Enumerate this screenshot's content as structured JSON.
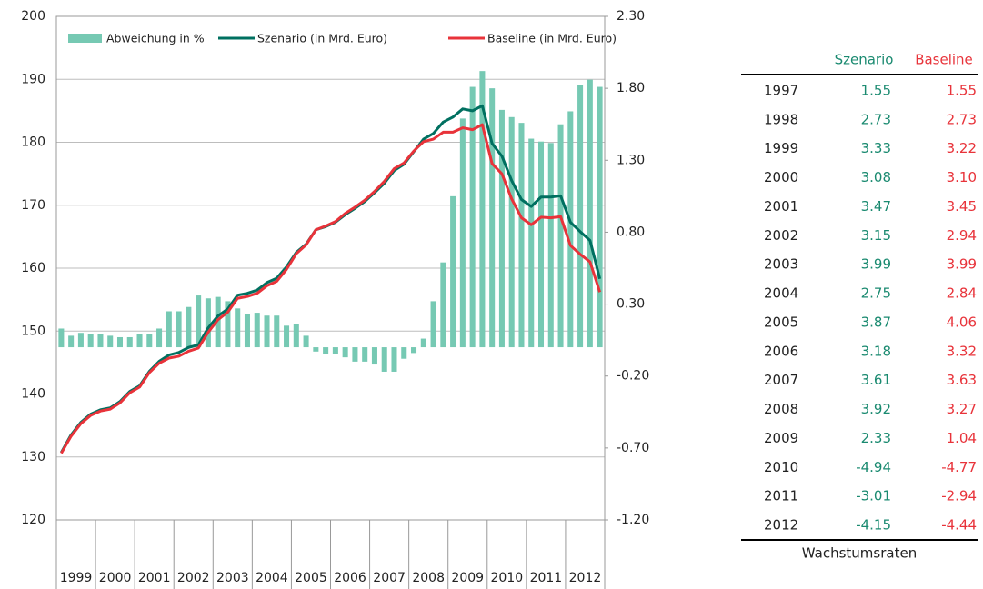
{
  "chart_data": {
    "type": "combo",
    "categories": [
      "1999",
      null,
      null,
      null,
      "2000",
      null,
      null,
      null,
      "2001",
      null,
      null,
      null,
      "2002",
      null,
      null,
      null,
      "2003",
      null,
      null,
      null,
      "2004",
      null,
      null,
      null,
      "2005",
      null,
      null,
      null,
      "2006",
      null,
      null,
      null,
      "2007",
      null,
      null,
      null,
      "2008",
      null,
      null,
      null,
      "2009",
      null,
      null,
      null,
      "2010",
      null,
      null,
      null,
      "2011",
      null,
      null,
      null,
      "2012",
      null,
      null,
      null
    ],
    "ylim": [
      120,
      200
    ],
    "yticks": [
      120,
      130,
      140,
      150,
      160,
      170,
      180,
      190,
      200
    ],
    "y2lim": [
      -1.2,
      2.3
    ],
    "y2ticks": [
      {
        "value": -1.2,
        "label": "-1.20"
      },
      {
        "value": -0.7,
        "label": "-0.70"
      },
      {
        "value": -0.2,
        "label": "-0.20"
      },
      {
        "value": 0.3,
        "label": "0.30"
      },
      {
        "value": 0.8,
        "label": "0.80"
      },
      {
        "value": 1.3,
        "label": "1.30"
      },
      {
        "value": 1.8,
        "label": "1.80"
      },
      {
        "value": 2.3,
        "label": "2.30"
      }
    ],
    "grid": true,
    "legend": "top",
    "series": [
      {
        "name": "Abweichung in %",
        "type": "bar",
        "axis": "y2",
        "color": "#76c9b3",
        "values": [
          0.13,
          0.08,
          0.1,
          0.09,
          0.09,
          0.08,
          0.07,
          0.07,
          0.09,
          0.09,
          0.13,
          0.25,
          0.25,
          0.28,
          0.36,
          0.34,
          0.35,
          0.32,
          0.27,
          0.23,
          0.24,
          0.22,
          0.22,
          0.15,
          0.16,
          0.08,
          -0.03,
          -0.05,
          -0.05,
          -0.07,
          -0.1,
          -0.1,
          -0.12,
          -0.17,
          -0.17,
          -0.08,
          -0.04,
          0.06,
          0.32,
          0.59,
          1.05,
          1.59,
          1.81,
          1.92,
          1.8,
          1.65,
          1.6,
          1.56,
          1.45,
          1.43,
          1.42,
          1.55,
          1.64,
          1.82,
          1.86,
          1.81
        ]
      },
      {
        "name": "Szenario (in Mrd. Euro)",
        "type": "line",
        "color": "#007060",
        "values": [
          130.7,
          133.5,
          135.5,
          136.8,
          137.5,
          137.8,
          138.8,
          140.4,
          141.3,
          143.6,
          145.2,
          146.2,
          146.6,
          147.4,
          147.8,
          150.5,
          152.4,
          153.5,
          155.7,
          156.0,
          156.5,
          157.7,
          158.4,
          160.2,
          162.5,
          163.8,
          166.1,
          166.6,
          167.3,
          168.5,
          169.5,
          170.6,
          172.0,
          173.5,
          175.5,
          176.5,
          178.5,
          180.5,
          181.4,
          183.2,
          184.0,
          185.3,
          185.0,
          185.8,
          179.8,
          177.8,
          173.9,
          170.9,
          169.8,
          171.3,
          171.3,
          171.5,
          167.3,
          165.8,
          164.4,
          158.3
        ]
      },
      {
        "name": "Baseline (in Mrd. Euro)",
        "type": "line",
        "color": "#e8333a",
        "values": [
          130.6,
          133.3,
          135.3,
          136.6,
          137.3,
          137.6,
          138.6,
          140.2,
          141.1,
          143.4,
          144.9,
          145.7,
          146.0,
          146.8,
          147.3,
          149.8,
          151.8,
          153.0,
          155.2,
          155.5,
          156.0,
          157.2,
          157.9,
          159.8,
          162.3,
          163.7,
          166.1,
          166.7,
          167.4,
          168.7,
          169.7,
          170.8,
          172.2,
          173.8,
          175.8,
          176.7,
          178.6,
          180.1,
          180.5,
          181.6,
          181.6,
          182.3,
          182.0,
          182.8,
          176.6,
          175.0,
          171.0,
          168.0,
          166.9,
          168.1,
          168.0,
          168.2,
          163.6,
          162.2,
          161.0,
          156.2
        ]
      }
    ]
  },
  "table": {
    "columns": [
      "Szenario",
      "Baseline"
    ],
    "rows": [
      [
        "1997",
        "1.55",
        "1.55"
      ],
      [
        "1998",
        "2.73",
        "2.73"
      ],
      [
        "1999",
        "3.33",
        "3.22"
      ],
      [
        "2000",
        "3.08",
        "3.10"
      ],
      [
        "2001",
        "3.47",
        "3.45"
      ],
      [
        "2002",
        "3.15",
        "2.94"
      ],
      [
        "2003",
        "3.99",
        "3.99"
      ],
      [
        "2004",
        "2.75",
        "2.84"
      ],
      [
        "2005",
        "3.87",
        "4.06"
      ],
      [
        "2006",
        "3.18",
        "3.32"
      ],
      [
        "2007",
        "3.61",
        "3.63"
      ],
      [
        "2008",
        "3.92",
        "3.27"
      ],
      [
        "2009",
        "2.33",
        "1.04"
      ],
      [
        "2010",
        "-4.94",
        "-4.77"
      ],
      [
        "2011",
        "-3.01",
        "-2.94"
      ],
      [
        "2012",
        "-4.15",
        "-4.44"
      ]
    ],
    "caption": "Wachstumsraten"
  }
}
